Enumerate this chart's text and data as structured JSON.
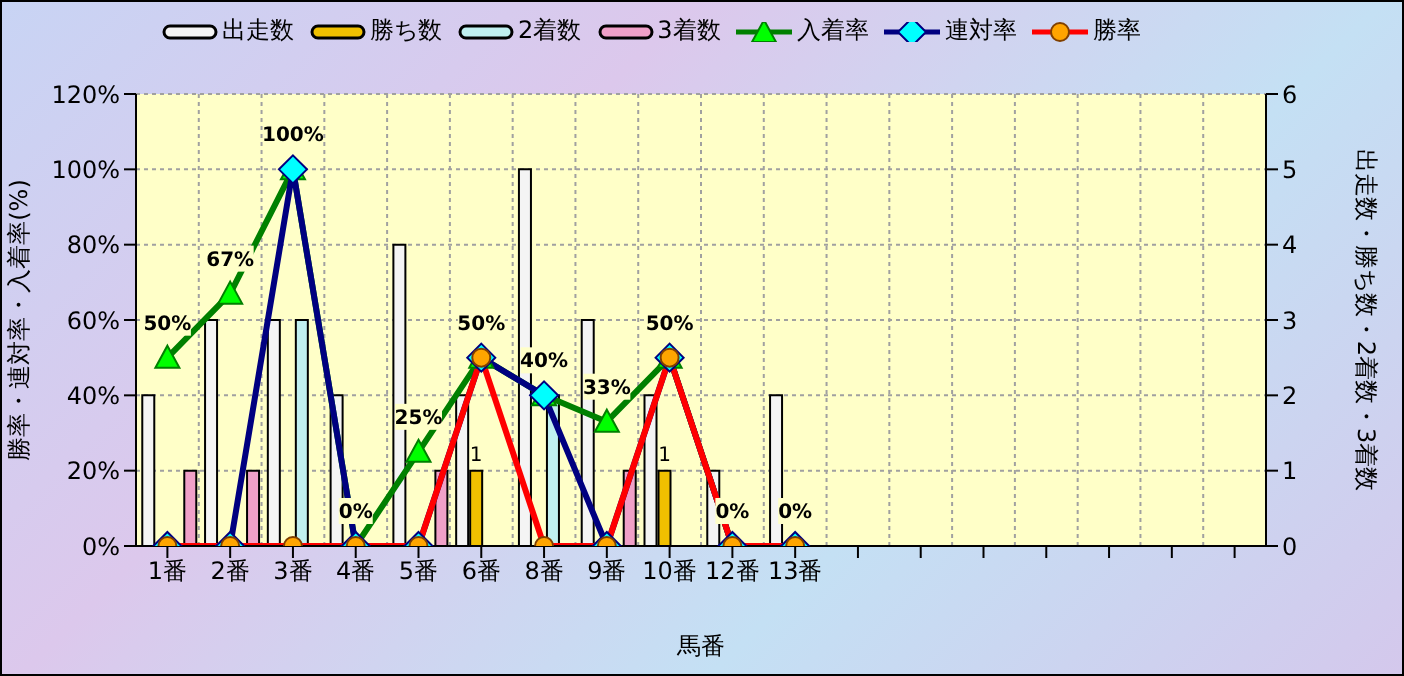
{
  "chart_data": {
    "type": "bar",
    "xlabel": "馬番",
    "ylabel": "勝率・連対率・入着率(%)",
    "y2label": "出走数・勝ち数・2着数・3着数",
    "categories": [
      "1番",
      "2番",
      "3番",
      "4番",
      "5番",
      "6番",
      "8番",
      "9番",
      "10番",
      "12番",
      "13番",
      null,
      null,
      null,
      null,
      null,
      null,
      null
    ],
    "series": [
      {
        "name": "出走数",
        "axis": "y2",
        "color": "#f4f4f4",
        "values": [
          2,
          3,
          3,
          2,
          4,
          2,
          5,
          3,
          2,
          1,
          2,
          null,
          null,
          null,
          null,
          null,
          null,
          null
        ]
      },
      {
        "name": "勝ち数",
        "axis": "y2",
        "color": "#f0c000",
        "values": [
          0,
          0,
          0,
          0,
          0,
          1,
          0,
          0,
          1,
          0,
          0,
          null,
          null,
          null,
          null,
          null,
          null,
          null
        ],
        "value_labels": [
          null,
          null,
          null,
          null,
          null,
          "1",
          null,
          null,
          "1",
          null,
          null,
          null,
          null,
          null,
          null,
          null,
          null,
          null
        ]
      },
      {
        "name": "2着数",
        "axis": "y2",
        "color": "#c0f0f0",
        "values": [
          0,
          0,
          3,
          0,
          0,
          0,
          2,
          0,
          0,
          0,
          0,
          null,
          null,
          null,
          null,
          null,
          null,
          null
        ]
      },
      {
        "name": "3着数",
        "axis": "y2",
        "color": "#f0a0c8",
        "values": [
          1,
          1,
          0,
          0,
          1,
          0,
          0,
          1,
          0,
          0,
          0,
          null,
          null,
          null,
          null,
          null,
          null,
          null
        ]
      },
      {
        "name": "入着率",
        "type": "line",
        "color": "#008000",
        "marker": "triangle",
        "values": [
          50,
          67,
          100,
          0,
          25,
          50,
          40,
          33,
          50,
          0,
          0,
          null,
          null,
          null,
          null,
          null,
          null,
          null
        ],
        "value_labels": [
          "50%",
          "67%",
          "100%",
          "0%",
          "25%",
          "50%",
          "40%",
          "33%",
          "50%",
          "0%",
          "0%",
          null,
          null,
          null,
          null,
          null,
          null,
          null
        ]
      },
      {
        "name": "連対率",
        "type": "line",
        "color": "#000080",
        "marker": "diamond",
        "values": [
          0,
          0,
          100,
          0,
          0,
          50,
          40,
          0,
          50,
          0,
          0,
          null,
          null,
          null,
          null,
          null,
          null,
          null
        ]
      },
      {
        "name": "勝率",
        "type": "line",
        "color": "#ff0000",
        "marker": "circle",
        "values": [
          0,
          0,
          0,
          0,
          0,
          50,
          0,
          0,
          50,
          0,
          0,
          null,
          null,
          null,
          null,
          null,
          null,
          null
        ]
      }
    ],
    "ylim": [
      0,
      120
    ],
    "yticks": [
      {
        "value": 0,
        "label": "0%"
      },
      {
        "value": 20,
        "label": "20%"
      },
      {
        "value": 40,
        "label": "40%"
      },
      {
        "value": 60,
        "label": "60%"
      },
      {
        "value": 80,
        "label": "80%"
      },
      {
        "value": 100,
        "label": "100%"
      },
      {
        "value": 120,
        "label": "120%"
      }
    ],
    "y2lim": [
      0,
      6
    ],
    "y2ticks": [
      0,
      1,
      2,
      3,
      4,
      5,
      6
    ],
    "grid": true,
    "legend": "top"
  }
}
